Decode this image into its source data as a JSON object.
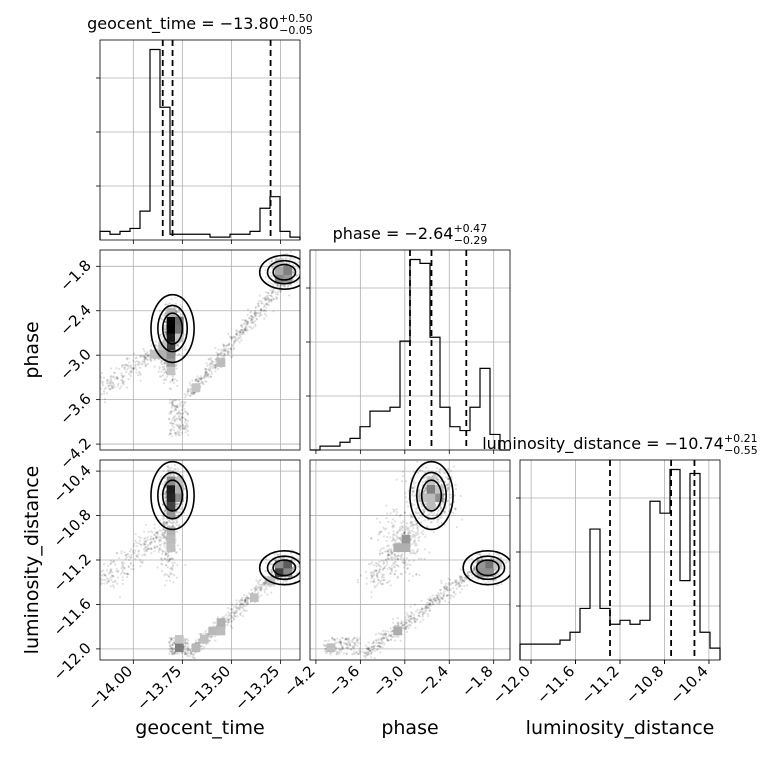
{
  "chart_data": {
    "type": "corner",
    "parameters": [
      "geocent_time",
      "phase",
      "luminosity_distance"
    ],
    "ranges": {
      "geocent_time": [
        -14.17,
        -13.15
      ],
      "phase": [
        -4.28,
        -1.58
      ],
      "luminosity_distance": [
        -12.1,
        -10.3
      ]
    },
    "ticks": {
      "geocent_time": [
        -14.0,
        -13.75,
        -13.5,
        -13.25
      ],
      "phase": [
        -4.2,
        -3.6,
        -3.0,
        -2.4,
        -1.8
      ],
      "luminosity_distance": [
        -12.0,
        -11.6,
        -11.2,
        -10.8,
        -10.4
      ]
    },
    "tick_labels": {
      "geocent_time": [
        "−14.00",
        "−13.75",
        "−13.50",
        "−13.25"
      ],
      "phase": [
        "−4.2",
        "−3.6",
        "−3.0",
        "−2.4",
        "−1.8"
      ],
      "luminosity_distance": [
        "−12.0",
        "−11.6",
        "−11.2",
        "−10.8",
        "−10.4"
      ]
    },
    "titles": [
      {
        "param": "geocent_time",
        "label": "geocent_time = −13.80",
        "sup": "+0.50",
        "sub": "−0.05"
      },
      {
        "param": "phase",
        "label": "phase = −2.64",
        "sup": "+0.47",
        "sub": "−0.29"
      },
      {
        "param": "luminosity_distance",
        "label": "luminosity_distance = −10.74",
        "sup": "+0.21",
        "sub": "−0.55"
      }
    ],
    "quantiles": {
      "geocent_time": [
        -13.85,
        -13.8,
        -13.3
      ],
      "phase": [
        -2.93,
        -2.64,
        -2.17
      ],
      "luminosity_distance": [
        -11.29,
        -10.74,
        -10.53
      ]
    },
    "histograms": {
      "geocent_time": {
        "edges": [
          -14.17,
          -14.119,
          -14.068,
          -14.017,
          -13.966,
          -13.915,
          -13.864,
          -13.813,
          -13.762,
          -13.711,
          -13.66,
          -13.609,
          -13.558,
          -13.507,
          -13.456,
          -13.405,
          -13.354,
          -13.303,
          -13.252,
          -13.201,
          -13.15
        ],
        "counts": [
          3,
          2,
          3,
          4,
          10,
          66,
          46,
          2,
          2,
          2,
          2,
          1,
          1,
          2,
          2,
          3,
          11,
          15,
          3,
          1
        ]
      },
      "phase": {
        "edges": [
          -4.28,
          -4.145,
          -4.01,
          -3.875,
          -3.74,
          -3.605,
          -3.47,
          -3.335,
          -3.2,
          -3.065,
          -2.93,
          -2.795,
          -2.66,
          -2.525,
          -2.39,
          -2.255,
          -2.12,
          -1.985,
          -1.85,
          -1.715,
          -1.58
        ],
        "counts": [
          0,
          1,
          1,
          2,
          3,
          6,
          10,
          10,
          11,
          28,
          49,
          48,
          29,
          11,
          6,
          5,
          11,
          21,
          4,
          0
        ]
      },
      "luminosity_distance": {
        "edges": [
          -12.1,
          -12.01,
          -11.92,
          -11.83,
          -11.74,
          -11.65,
          -11.56,
          -11.47,
          -11.38,
          -11.29,
          -11.2,
          -11.11,
          -11.02,
          -10.93,
          -10.84,
          -10.75,
          -10.66,
          -10.57,
          -10.48,
          -10.39,
          -10.3
        ],
        "counts": [
          4,
          4,
          4,
          4,
          5,
          7,
          13,
          33,
          13,
          9,
          10,
          9,
          10,
          40,
          37,
          48,
          20,
          47,
          7,
          3
        ]
      }
    },
    "posterior_clusters": [
      {
        "geocent_time": -13.8,
        "phase": -2.64,
        "luminosity_distance": -10.62,
        "weight": 0.6
      },
      {
        "geocent_time": -13.23,
        "phase": -1.88,
        "luminosity_distance": -11.27,
        "weight": 0.2
      },
      {
        "geocent_time": -13.66,
        "phase": -3.3,
        "luminosity_distance": -11.85,
        "weight": 0.2
      }
    ],
    "grid": true
  }
}
